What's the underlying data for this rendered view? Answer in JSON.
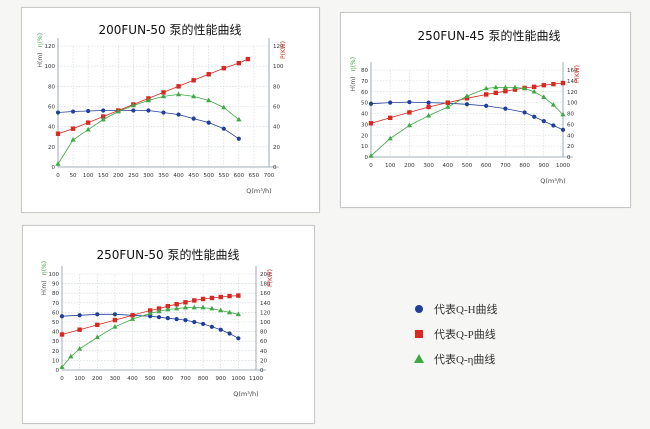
{
  "colors": {
    "h": "#1f3f9a",
    "p": "#d8281f",
    "eta": "#3ea843",
    "grid": "#c9d4db",
    "axis": "#8a9aa6",
    "text": "#333333"
  },
  "legend": [
    {
      "label": "代表Q-H曲线",
      "key": "h",
      "marker": "circle"
    },
    {
      "label": "代表Q-P曲线",
      "key": "p",
      "marker": "square"
    },
    {
      "label": "代表Q-η曲线",
      "key": "eta",
      "marker": "triangle"
    }
  ],
  "chart_data": [
    {
      "type": "line",
      "title": "200FUN-50 泵的性能曲线",
      "xlabel": "Q(m³/h)",
      "ylabel_eta": "η(%)",
      "ylabel_h": "H(m)",
      "ylabel_p": "P(KW)",
      "xlim": [
        0,
        700
      ],
      "xticks": [
        0,
        50,
        100,
        150,
        200,
        250,
        300,
        350,
        400,
        450,
        500,
        550,
        600,
        650,
        700
      ],
      "ylim": [
        0,
        120
      ],
      "yticks": [
        0,
        20,
        40,
        60,
        80,
        100,
        120
      ],
      "plim": [
        0,
        120
      ],
      "pticks": [
        0,
        20,
        40,
        60,
        80,
        100,
        120
      ],
      "series": [
        {
          "name": "Q-H",
          "key": "h",
          "axis": "left",
          "marker": "circle",
          "x": [
            0,
            50,
            100,
            150,
            200,
            250,
            300,
            350,
            400,
            450,
            500,
            550,
            600
          ],
          "values": [
            54,
            55,
            55.5,
            56,
            56,
            56,
            56,
            54,
            52,
            48,
            44,
            38,
            28
          ]
        },
        {
          "name": "Q-P",
          "key": "p",
          "axis": "right",
          "marker": "square",
          "x": [
            0,
            50,
            100,
            150,
            200,
            250,
            300,
            350,
            400,
            450,
            500,
            550,
            600,
            630
          ],
          "values": [
            33,
            38,
            44,
            50,
            56,
            62,
            68,
            74,
            80,
            86,
            92,
            98,
            103,
            107
          ]
        },
        {
          "name": "Q-η",
          "key": "eta",
          "axis": "left",
          "marker": "triangle",
          "x": [
            0,
            50,
            100,
            150,
            200,
            250,
            300,
            350,
            400,
            450,
            500,
            550,
            600
          ],
          "values": [
            3,
            27,
            37,
            47,
            55,
            61,
            66,
            70,
            72,
            70,
            66,
            59,
            47
          ]
        }
      ]
    },
    {
      "type": "line",
      "title": "250FUN-45 泵的性能曲线",
      "xlabel": "Q(m³/h)",
      "ylabel_eta": "η(%)",
      "ylabel_h": "H(m)",
      "ylabel_p": "P(KW)",
      "xlim": [
        0,
        1000
      ],
      "xticks": [
        0,
        100,
        200,
        300,
        400,
        500,
        600,
        700,
        800,
        900,
        1000
      ],
      "ylim": [
        0,
        80
      ],
      "yticks": [
        0,
        10,
        20,
        30,
        40,
        50,
        60,
        70,
        80
      ],
      "plim": [
        0,
        160
      ],
      "pticks": [
        0,
        20,
        40,
        60,
        80,
        100,
        120,
        140,
        160
      ],
      "series": [
        {
          "name": "Q-H",
          "key": "h",
          "axis": "left",
          "marker": "circle",
          "x": [
            0,
            100,
            200,
            300,
            400,
            500,
            600,
            700,
            800,
            850,
            900,
            950,
            1000
          ],
          "values": [
            49,
            50,
            50.5,
            50,
            49.5,
            48.5,
            47,
            44.5,
            41,
            37,
            33,
            29,
            25
          ]
        },
        {
          "name": "Q-P",
          "key": "p",
          "axis": "right",
          "marker": "square",
          "x": [
            0,
            100,
            200,
            300,
            400,
            500,
            600,
            650,
            700,
            750,
            800,
            850,
            900,
            950,
            1000
          ],
          "values": [
            62,
            72,
            82,
            92,
            100,
            108,
            115,
            118,
            121,
            124,
            127,
            129,
            132,
            134,
            136
          ]
        },
        {
          "name": "Q-η",
          "key": "eta",
          "axis": "left",
          "marker": "triangle",
          "x": [
            0,
            100,
            200,
            300,
            400,
            500,
            600,
            650,
            700,
            750,
            800,
            850,
            900,
            950,
            1000
          ],
          "values": [
            1,
            17,
            29,
            38,
            46,
            56,
            63,
            64,
            64,
            64,
            63,
            60,
            55,
            48,
            39
          ]
        }
      ]
    },
    {
      "type": "line",
      "title": "250FUN-50 泵的性能曲线",
      "xlabel": "Q(m³/h)",
      "ylabel_eta": "η(%)",
      "ylabel_h": "H(m)",
      "ylabel_p": "P(KW)",
      "xlim": [
        0,
        1100
      ],
      "xticks": [
        0,
        100,
        200,
        300,
        400,
        500,
        600,
        700,
        800,
        900,
        1000,
        1100
      ],
      "ylim": [
        0,
        100
      ],
      "yticks": [
        0,
        10,
        20,
        30,
        40,
        50,
        60,
        70,
        80,
        90,
        100
      ],
      "plim": [
        0,
        200
      ],
      "pticks": [
        0,
        20,
        40,
        60,
        80,
        100,
        120,
        140,
        160,
        180,
        200
      ],
      "series": [
        {
          "name": "Q-H",
          "key": "h",
          "axis": "left",
          "marker": "circle",
          "x": [
            0,
            100,
            200,
            300,
            400,
            500,
            550,
            600,
            650,
            700,
            750,
            800,
            850,
            900,
            950,
            1000
          ],
          "values": [
            56,
            57,
            58,
            58,
            57,
            56,
            55,
            54,
            53,
            52,
            50,
            48,
            45,
            42,
            38,
            33
          ]
        },
        {
          "name": "Q-P",
          "key": "p",
          "axis": "right",
          "marker": "square",
          "x": [
            0,
            100,
            200,
            300,
            400,
            500,
            550,
            600,
            650,
            700,
            750,
            800,
            850,
            900,
            950,
            1000
          ],
          "values": [
            74,
            84,
            94,
            104,
            114,
            124,
            128,
            133,
            137,
            141,
            145,
            148,
            150,
            152,
            154,
            155
          ]
        },
        {
          "name": "Q-η",
          "key": "eta",
          "axis": "left",
          "marker": "triangle",
          "x": [
            0,
            50,
            100,
            200,
            300,
            400,
            500,
            550,
            600,
            650,
            700,
            750,
            800,
            850,
            900,
            950,
            1000
          ],
          "values": [
            3,
            14,
            22,
            34,
            45,
            53,
            59,
            61,
            63,
            64,
            65,
            65,
            65,
            64,
            62,
            60,
            58
          ]
        }
      ]
    }
  ]
}
